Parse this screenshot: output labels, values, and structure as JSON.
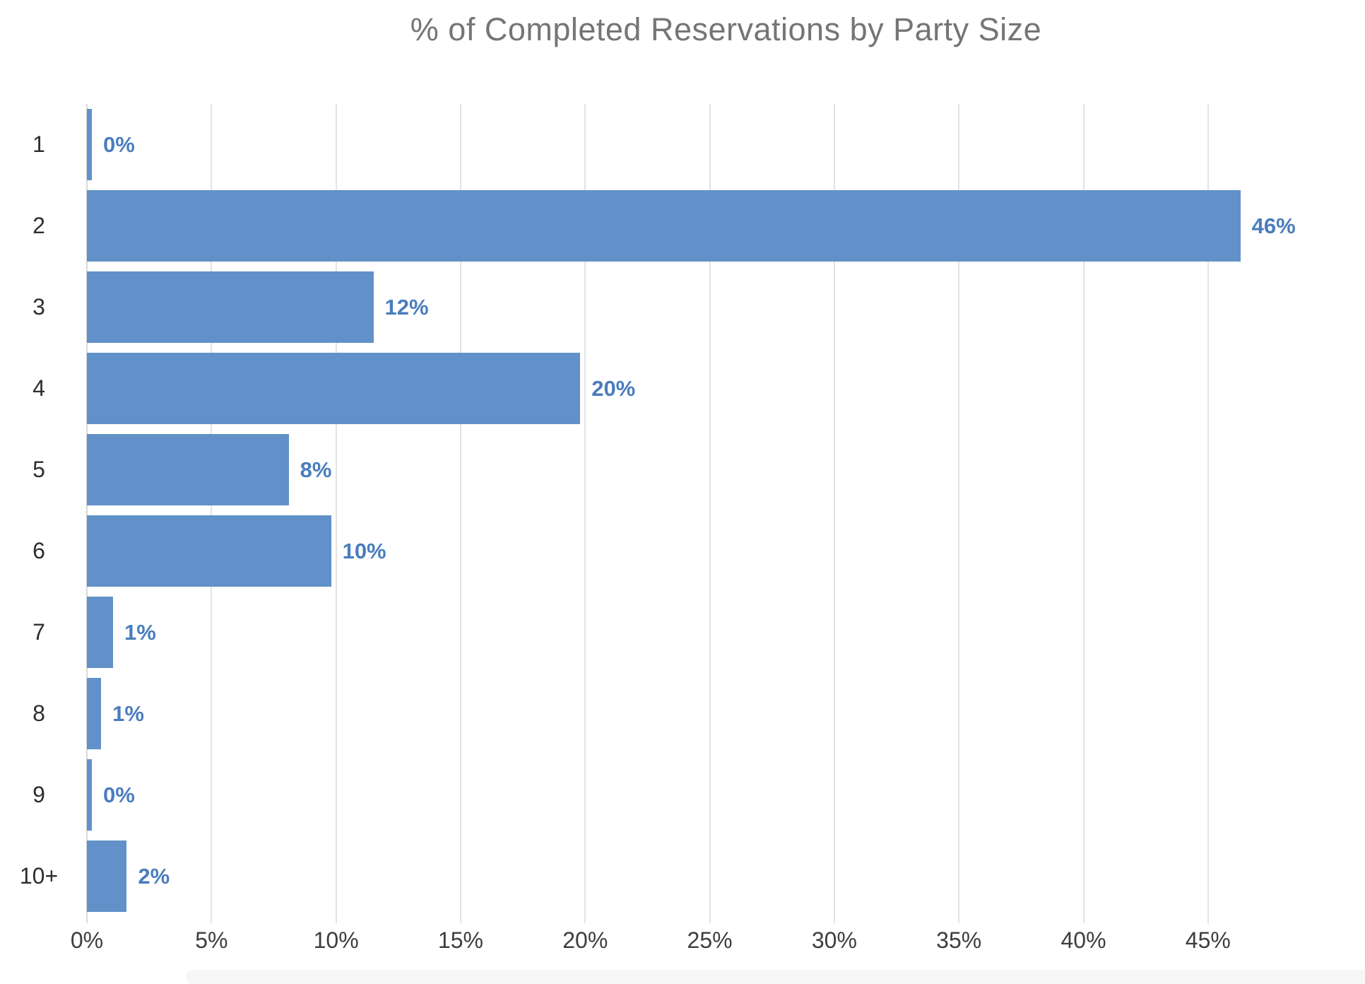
{
  "title": "% of Completed Reservations by Party Size",
  "colors": {
    "bar": "#6191c8",
    "value_label": "#4a7dbd",
    "title": "#757575",
    "tick_label": "#3d3d3d",
    "gridline": "#e3e3e3",
    "gridline_zero": "#d9d9d9",
    "scrollbar_track": "#f6f6f6"
  },
  "chart_data": {
    "type": "bar",
    "orientation": "horizontal",
    "title": "% of Completed Reservations by Party Size",
    "categories": [
      "1",
      "2",
      "3",
      "4",
      "5",
      "6",
      "7",
      "8",
      "9",
      "10+"
    ],
    "values": [
      0,
      46,
      12,
      20,
      8,
      10,
      1,
      1,
      0,
      2
    ],
    "value_labels": [
      "0%",
      "46%",
      "12%",
      "20%",
      "8%",
      "10%",
      "1%",
      "1%",
      "0%",
      "2%"
    ],
    "x_tick_values": [
      0,
      5,
      10,
      15,
      20,
      25,
      30,
      35,
      40,
      45
    ],
    "x_tick_labels": [
      "0%",
      "5%",
      "10%",
      "15%",
      "20%",
      "25%",
      "30%",
      "35%",
      "40%",
      "45%"
    ],
    "xlim": [
      0,
      51.3
    ],
    "grid": "vertical-only",
    "legend": "none",
    "xlabel": "",
    "ylabel": "",
    "bar_percent_est": [
      0.2,
      46.3,
      11.5,
      19.8,
      8.1,
      9.8,
      1.05,
      0.57,
      0.2,
      1.6
    ]
  }
}
